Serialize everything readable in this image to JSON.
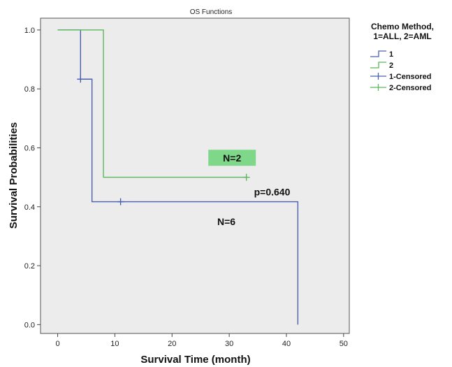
{
  "chart_data": {
    "type": "line",
    "title": "OS Functions",
    "xlabel": "Survival Time (month)",
    "ylabel": "Survival Probabilities",
    "xlim": [
      -3,
      51
    ],
    "ylim": [
      -0.03,
      1.04
    ],
    "x_ticks": [
      0,
      10,
      20,
      30,
      40,
      50
    ],
    "y_ticks": [
      0.0,
      0.2,
      0.4,
      0.6,
      0.8,
      1.0
    ],
    "x_tick_labels": [
      "0",
      "10",
      "20",
      "30",
      "40",
      "50"
    ],
    "y_tick_labels": [
      "0.0",
      "0.2",
      "0.4",
      "0.6",
      "0.8",
      "1.0"
    ],
    "grid": false,
    "plot_background": "#ececec",
    "legend": {
      "title_lines": [
        "Chemo Method,",
        "1=ALL, 2=AML"
      ],
      "placement": "right"
    },
    "series": [
      {
        "name": "1",
        "color": "#4a5fb0",
        "steps": [
          [
            0,
            1.0
          ],
          [
            4,
            0.833
          ],
          [
            6,
            0.417
          ],
          [
            42,
            0.417
          ],
          [
            42,
            0.0
          ]
        ],
        "end_x": 42
      },
      {
        "name": "2",
        "color": "#5cb85c",
        "steps": [
          [
            0,
            1.0
          ],
          [
            8,
            0.5
          ],
          [
            33,
            0.5
          ]
        ],
        "end_x": 33
      }
    ],
    "censored": [
      {
        "name": "1-Censored",
        "color": "#4a5fb0",
        "points": [
          [
            4,
            0.833
          ],
          [
            11,
            0.417
          ]
        ]
      },
      {
        "name": "2-Censored",
        "color": "#5cb85c",
        "points": [
          [
            33,
            0.5
          ]
        ]
      }
    ],
    "annotations": [
      {
        "text": "N=2",
        "x": 30.5,
        "y": 0.565,
        "highlight": "#7fd88a"
      },
      {
        "text": "p=0.640",
        "x": 37.5,
        "y": 0.45
      },
      {
        "text": "N=6",
        "x": 29.5,
        "y": 0.35
      }
    ]
  }
}
